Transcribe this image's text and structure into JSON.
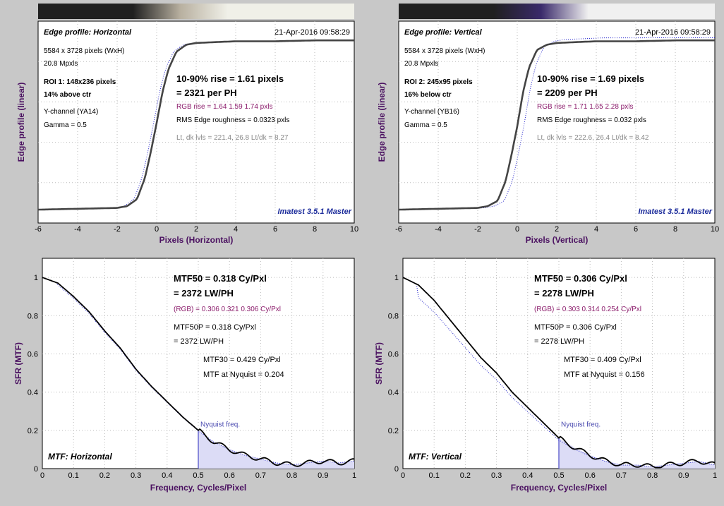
{
  "panels": [
    {
      "id": "edge-h",
      "chart_data": {
        "type": "line",
        "title": "Edge profile: Horizontal",
        "xlabel": "Pixels (Horizontal)",
        "ylabel": "Edge profile (linear)",
        "xlim": [
          -6,
          10
        ],
        "xticks": [
          -6,
          -4,
          -2,
          0,
          2,
          4,
          6,
          8,
          10
        ],
        "grid": true,
        "series": [
          {
            "x": [
              -6,
              -4,
              -2,
              -1.5,
              -1,
              -0.6,
              -0.3,
              0,
              0.3,
              0.6,
              1,
              1.5,
              2,
              3,
              4,
              6,
              8,
              10
            ],
            "y": [
              0.02,
              0.025,
              0.03,
              0.04,
              0.08,
              0.2,
              0.35,
              0.52,
              0.7,
              0.83,
              0.93,
              0.97,
              0.98,
              0.985,
              0.99,
              0.99,
              0.995,
              0.995
            ]
          }
        ]
      },
      "timestamp": "21-Apr-2016 09:58:29",
      "info": [
        "5584 x 3728 pixels (WxH)",
        "20.8 Mpxls",
        "ROI 1:  148x236 pixels",
        "14% above ctr",
        "Y-channel  (YA14)",
        "Gamma = 0.5"
      ],
      "rise": "10-90% rise = 1.61 pixels",
      "per_ph": "= 2321 per PH",
      "rgb_rise": "RGB rise = 1.64  1.59  1.74 pxls",
      "roughness": "RMS Edge roughness = 0.0323 pxls",
      "levels": "Lt, dk lvls = 221.4, 26.8   Lt/dk = 8.27",
      "brand": "Imatest 3.5.1 Master",
      "bar_colors": [
        "#202020",
        "#b8b0a0",
        "#f0f0e8"
      ]
    },
    {
      "id": "edge-v",
      "chart_data": {
        "type": "line",
        "title": "Edge profile: Vertical",
        "xlabel": "Pixels (Vertical)",
        "ylabel": "Edge profile (linear)",
        "xlim": [
          -6,
          10
        ],
        "xticks": [
          -6,
          -4,
          -2,
          0,
          2,
          4,
          6,
          8,
          10
        ],
        "grid": true,
        "series": [
          {
            "x": [
              -6,
              -4,
              -2,
              -1.5,
              -1,
              -0.6,
              -0.3,
              0,
              0.3,
              0.6,
              1,
              1.5,
              2,
              3,
              4,
              6,
              8,
              10
            ],
            "y": [
              0.02,
              0.025,
              0.03,
              0.04,
              0.07,
              0.18,
              0.33,
              0.5,
              0.7,
              0.84,
              0.94,
              0.97,
              0.98,
              0.985,
              0.99,
              0.99,
              0.995,
              0.995
            ]
          }
        ]
      },
      "timestamp": "21-Apr-2016 09:58:29",
      "info": [
        "5584 x 3728 pixels (WxH)",
        "20.8 Mpxls",
        "ROI 2:  245x95 pixels",
        "16% below ctr",
        "Y-channel  (YB16)",
        "Gamma = 0.5"
      ],
      "rise": "10-90% rise = 1.69 pixels",
      "per_ph": "= 2209 per PH",
      "rgb_rise": "RGB rise = 1.71  1.65  2.28 pxls",
      "roughness": "RMS Edge roughness = 0.032 pxls",
      "levels": "Lt, dk lvls = 222.6, 26.4   Lt/dk = 8.42",
      "brand": "Imatest 3.5.1 Master",
      "bar_colors": [
        "#202020",
        "#3a2a6a",
        "#f0f0f0"
      ]
    },
    {
      "id": "mtf-h",
      "chart_data": {
        "type": "line",
        "title": "MTF: Horizontal",
        "xlabel": "Frequency, Cycles/Pixel",
        "ylabel": "SFR (MTF)",
        "xlim": [
          0,
          1
        ],
        "ylim": [
          0,
          1.1
        ],
        "xticks": [
          0,
          0.1,
          0.2,
          0.3,
          0.4,
          0.5,
          0.6,
          0.7,
          0.8,
          0.9,
          1
        ],
        "yticks": [
          0,
          0.2,
          0.4,
          0.6,
          0.8,
          1
        ],
        "grid": true,
        "series": [
          {
            "x": [
              0,
              0.05,
              0.1,
              0.15,
              0.2,
              0.25,
              0.3,
              0.35,
              0.4,
              0.45,
              0.5,
              0.55,
              0.6,
              0.65,
              0.7,
              0.75,
              0.8,
              0.85,
              0.9,
              0.95,
              1
            ],
            "y": [
              1,
              0.97,
              0.9,
              0.82,
              0.72,
              0.63,
              0.52,
              0.43,
              0.35,
              0.27,
              0.2,
              0.14,
              0.1,
              0.07,
              0.05,
              0.03,
              0.02,
              0.03,
              0.04,
              0.03,
              0.04
            ]
          }
        ],
        "nyquist": 0.5
      },
      "mtf50": "MTF50 = 0.318 Cy/Pxl",
      "lwph": "= 2372 LW/PH",
      "rgb": "(RGB) = 0.306  0.321  0.306 Cy/Pxl",
      "mtf50p": "MTF50P = 0.318 Cy/Pxl",
      "lwph2": "= 2372 LW/PH",
      "mtf30": "MTF30 = 0.429 Cy/Pxl",
      "nyq_text": "MTF at Nyquist = 0.204",
      "nyq_label": "Nyquist freq."
    },
    {
      "id": "mtf-v",
      "chart_data": {
        "type": "line",
        "title": "MTF: Vertical",
        "xlabel": "Frequency, Cycles/Pixel",
        "ylabel": "SFR (MTF)",
        "xlim": [
          0,
          1
        ],
        "ylim": [
          0,
          1.1
        ],
        "xticks": [
          0,
          0.1,
          0.2,
          0.3,
          0.4,
          0.5,
          0.6,
          0.7,
          0.8,
          0.9,
          1
        ],
        "yticks": [
          0,
          0.2,
          0.4,
          0.6,
          0.8,
          1
        ],
        "grid": true,
        "series": [
          {
            "x": [
              0,
              0.05,
              0.1,
              0.15,
              0.2,
              0.25,
              0.3,
              0.35,
              0.4,
              0.45,
              0.5,
              0.55,
              0.6,
              0.65,
              0.7,
              0.75,
              0.8,
              0.85,
              0.9,
              0.95,
              1
            ],
            "y": [
              1,
              0.96,
              0.88,
              0.78,
              0.68,
              0.58,
              0.5,
              0.4,
              0.32,
              0.24,
              0.16,
              0.11,
              0.07,
              0.04,
              0.02,
              0.02,
              0.01,
              0.02,
              0.03,
              0.04,
              0.02
            ]
          }
        ],
        "nyquist": 0.5
      },
      "mtf50": "MTF50 = 0.306 Cy/Pxl",
      "lwph": "= 2278 LW/PH",
      "rgb": "(RGB) = 0.303  0.314  0.254 Cy/Pxl",
      "mtf50p": "MTF50P = 0.306 Cy/Pxl",
      "lwph2": "= 2278 LW/PH",
      "mtf30": "MTF30 = 0.409 Cy/Pxl",
      "nyq_text": "MTF at Nyquist = 0.156",
      "nyq_label": "Nyquist freq."
    }
  ]
}
